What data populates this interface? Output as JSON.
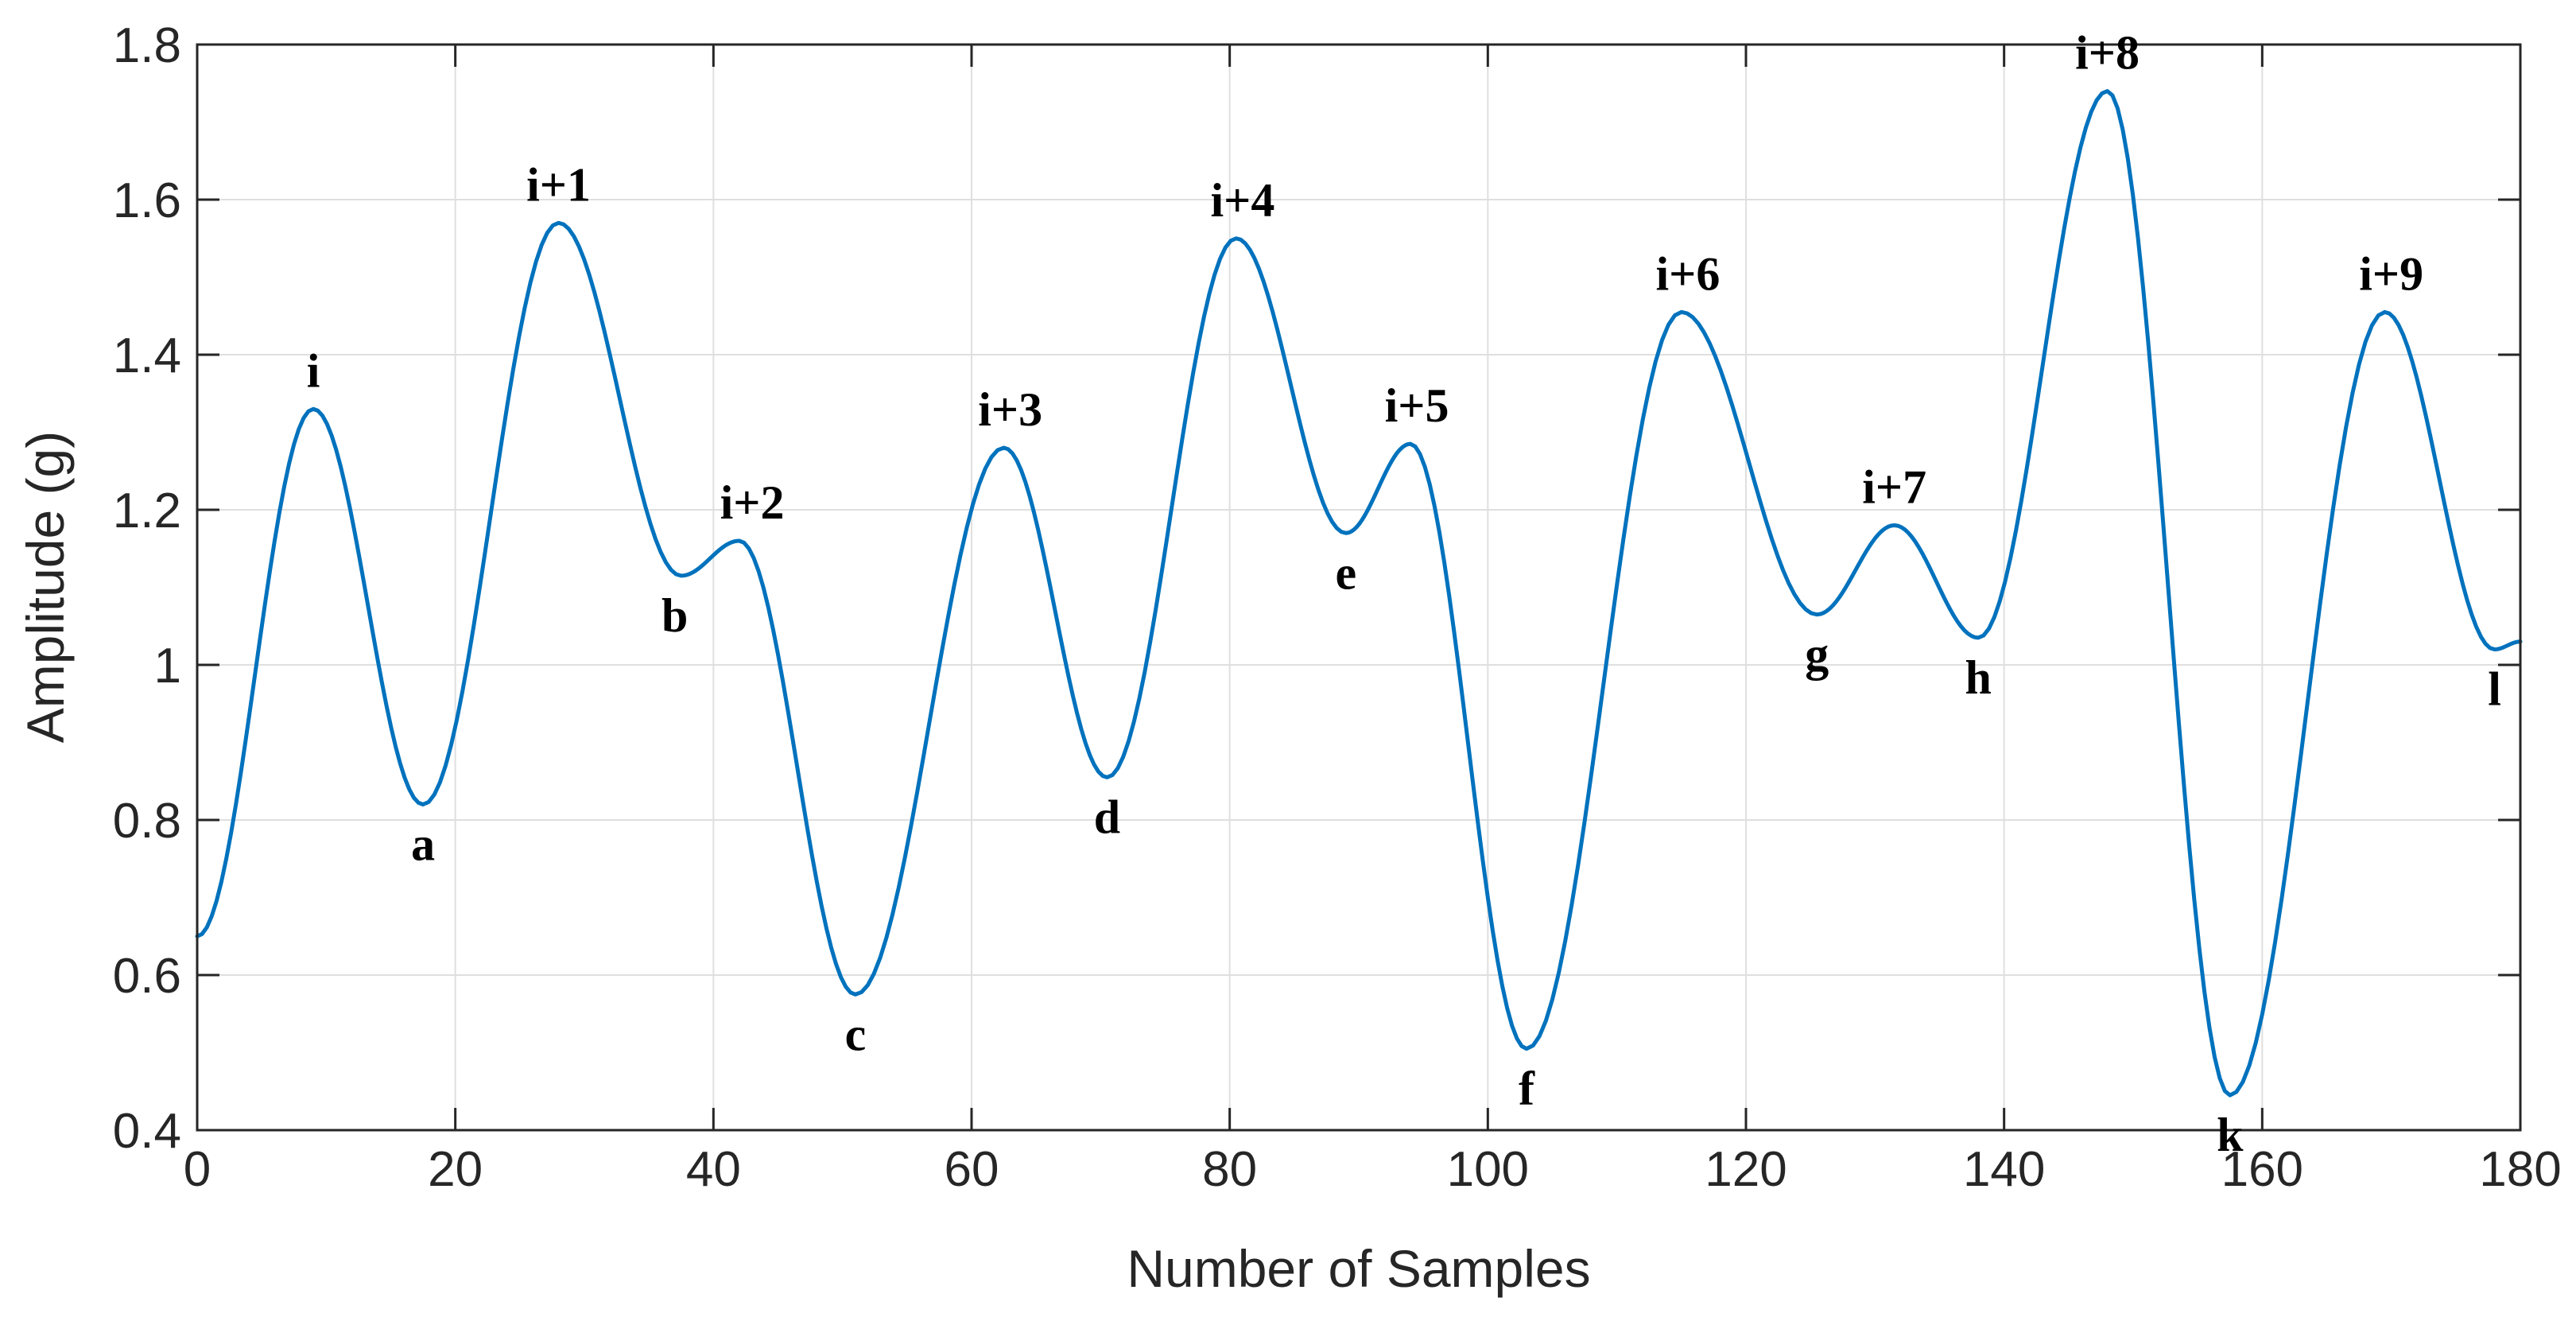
{
  "chart_data": {
    "type": "line",
    "xlabel": "Number of Samples",
    "ylabel": "Amplitude (g)",
    "xlim": [
      0,
      180
    ],
    "ylim": [
      0.4,
      1.8
    ],
    "xticks": [
      0,
      20,
      40,
      60,
      80,
      100,
      120,
      140,
      160,
      180
    ],
    "yticks": [
      0.4,
      0.6,
      0.8,
      1,
      1.2,
      1.4,
      1.6,
      1.8
    ],
    "xtick_labels": [
      "0",
      "20",
      "40",
      "60",
      "80",
      "100",
      "120",
      "140",
      "160",
      "180"
    ],
    "ytick_labels": [
      "0.4",
      "0.6",
      "0.8",
      "1",
      "1.2",
      "1.4",
      "1.6",
      "1.8"
    ],
    "grid": true,
    "series_color": "#0072BD",
    "series": [
      {
        "key_points": [
          {
            "x": 0,
            "y": 0.65
          },
          {
            "x": 9,
            "y": 1.33
          },
          {
            "x": 17.5,
            "y": 0.82
          },
          {
            "x": 28,
            "y": 1.57
          },
          {
            "x": 37.5,
            "y": 1.115
          },
          {
            "x": 42,
            "y": 1.16
          },
          {
            "x": 51,
            "y": 0.575
          },
          {
            "x": 62.5,
            "y": 1.28
          },
          {
            "x": 70.5,
            "y": 0.855
          },
          {
            "x": 80.5,
            "y": 1.55
          },
          {
            "x": 89,
            "y": 1.17
          },
          {
            "x": 94,
            "y": 1.285
          },
          {
            "x": 103,
            "y": 0.505
          },
          {
            "x": 115,
            "y": 1.455
          },
          {
            "x": 125.5,
            "y": 1.065
          },
          {
            "x": 131.5,
            "y": 1.18
          },
          {
            "x": 138,
            "y": 1.035
          },
          {
            "x": 148,
            "y": 1.74
          },
          {
            "x": 157.5,
            "y": 0.445
          },
          {
            "x": 169.5,
            "y": 1.455
          },
          {
            "x": 178,
            "y": 1.02
          },
          {
            "x": 180,
            "y": 1.03
          }
        ]
      }
    ],
    "annotations": [
      {
        "text": "i",
        "x": 9,
        "y": 1.33,
        "pos": "above"
      },
      {
        "text": "a",
        "x": 17.5,
        "y": 0.82,
        "pos": "below"
      },
      {
        "text": "i+1",
        "x": 28,
        "y": 1.57,
        "pos": "above"
      },
      {
        "text": "b",
        "x": 37,
        "y": 1.115,
        "pos": "below"
      },
      {
        "text": "i+2",
        "x": 43,
        "y": 1.16,
        "pos": "above"
      },
      {
        "text": "c",
        "x": 51,
        "y": 0.575,
        "pos": "below"
      },
      {
        "text": "i+3",
        "x": 63,
        "y": 1.28,
        "pos": "above"
      },
      {
        "text": "d",
        "x": 70.5,
        "y": 0.855,
        "pos": "below"
      },
      {
        "text": "i+4",
        "x": 81,
        "y": 1.55,
        "pos": "above"
      },
      {
        "text": "e",
        "x": 89,
        "y": 1.17,
        "pos": "below"
      },
      {
        "text": "i+5",
        "x": 94.5,
        "y": 1.285,
        "pos": "above"
      },
      {
        "text": "f",
        "x": 103,
        "y": 0.505,
        "pos": "below"
      },
      {
        "text": "i+6",
        "x": 115.5,
        "y": 1.455,
        "pos": "above"
      },
      {
        "text": "g",
        "x": 125.5,
        "y": 1.065,
        "pos": "below"
      },
      {
        "text": "i+7",
        "x": 131.5,
        "y": 1.18,
        "pos": "above"
      },
      {
        "text": "h",
        "x": 138,
        "y": 1.035,
        "pos": "below"
      },
      {
        "text": "i+8",
        "x": 148,
        "y": 1.74,
        "pos": "above"
      },
      {
        "text": "k",
        "x": 157.5,
        "y": 0.445,
        "pos": "below"
      },
      {
        "text": "i+9",
        "x": 170,
        "y": 1.455,
        "pos": "above"
      },
      {
        "text": "l",
        "x": 178,
        "y": 1.02,
        "pos": "below"
      }
    ]
  }
}
